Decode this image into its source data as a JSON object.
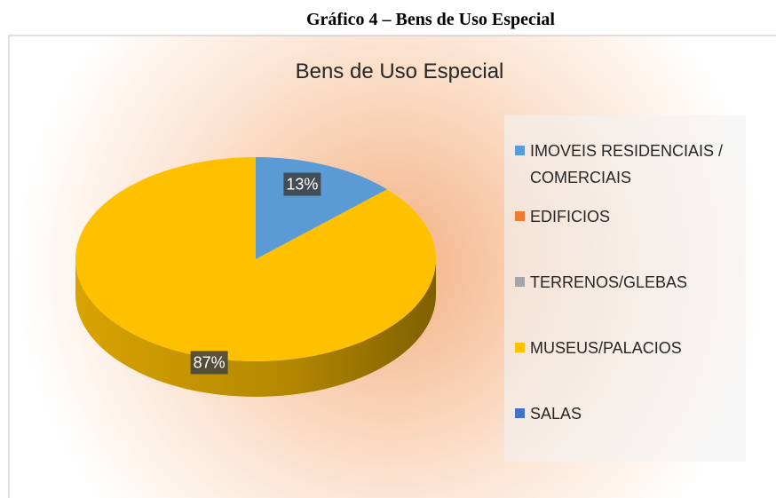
{
  "caption": "Gráfico 4 – Bens de Uso Especial",
  "chart_data": {
    "type": "pie",
    "title": "Bens de Uso Especial",
    "categories": [
      "IMOVEIS RESIDENCIAIS / COMERCIAIS",
      "EDIFICIOS",
      "TERRENOS/GLEBAS",
      "MUSEUS/PALACIOS",
      "SALAS"
    ],
    "values": [
      13,
      0,
      0,
      87,
      0
    ],
    "value_labels": [
      "13%",
      null,
      null,
      "87%",
      null
    ],
    "colors": [
      "#5b9bd5",
      "#ed7d31",
      "#a5a5a5",
      "#ffc000",
      "#4472c4"
    ],
    "legend": "right"
  }
}
